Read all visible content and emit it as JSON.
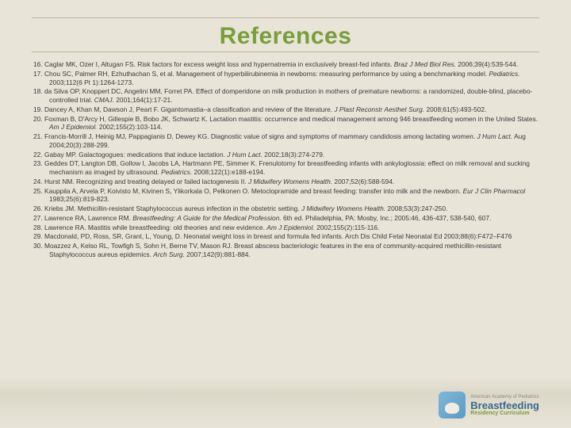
{
  "title": "References",
  "title_color": "#7a9e3a",
  "background_color": "#e8e4d8",
  "text_color": "#3a3a3a",
  "rule_color": "#b8b4a0",
  "ref_fontsize": 8.4,
  "references": [
    {
      "n": "16",
      "pre": "Caglar MK, Ozer I, Altugan FS. Risk factors for excess weight loss and hypernatremia in exclusively breast-fed infants. ",
      "ital": "Braz J Med Biol Res.",
      "post": " 2006;39(4):539-544."
    },
    {
      "n": "17",
      "pre": "Chou SC, Palmer RH, Ezhuthachan S, et al. Management of hyperbilirubinemia in newborns: measuring performance by using a benchmarking model. ",
      "ital": "Pediatrics.",
      "post": " 2003;112(6 Pt 1):1264-1273."
    },
    {
      "n": "18",
      "pre": "da Silva OP, Knoppert DC, Angelini MM, Forret PA. Effect of domperidone on milk production in mothers of premature newborns: a randomized, double-blind, placebo-controlled trial. ",
      "ital": "CMAJ.",
      "post": " 2001;164(1):17-21."
    },
    {
      "n": "19",
      "pre": "Dancey A, Khan M, Dawson J, Peart F. Gigantomastia–a classification and review of the literature. ",
      "ital": "J Plast Reconstr Aesthet Surg.",
      "post": " 2008;61(5):493-502."
    },
    {
      "n": "20",
      "pre": "Foxman B, D'Arcy H, Gillespie B, Bobo JK, Schwartz K. Lactation mastitis: occurrence and medical management among 946 breastfeeding women in the United States. ",
      "ital": "Am J Epidemiol.",
      "post": " 2002;155(2):103-114."
    },
    {
      "n": "21",
      "pre": "Francis-Morrill J, Heinig MJ, Pappagianis D, Dewey KG. Diagnostic value of signs and symptoms of mammary candidosis among lactating women. ",
      "ital": "J Hum Lact.",
      "post": " Aug 2004;20(3):288-299."
    },
    {
      "n": "22",
      "pre": "Gabay MP. Galactogogues: medications that induce lactation. ",
      "ital": "J Hum Lact.",
      "post": " 2002;18(3):274-279."
    },
    {
      "n": "23",
      "pre": "Geddes DT, Langton DB, Gollow I, Jacobs LA, Hartmann PE, Simmer K. Frenulotomy for breastfeeding infants with ankyloglossia: effect on milk removal and sucking mechanism as imaged by ultrasound. ",
      "ital": "Pediatrics.",
      "post": " 2008;122(1):e188-e194."
    },
    {
      "n": "24",
      "pre": "Hurst NM. Recognizing and treating delayed or failed lactogenesis II. ",
      "ital": "J Midwifery Womens Health.",
      "post": " 2007;52(6):588-594."
    },
    {
      "n": "25",
      "pre": "Kauppila A, Arvela P, Koivisto M, Kivinen S, Ylikorkala O, Pelkonen O. Metoclopramide and breast feeding: transfer into milk and the newborn. ",
      "ital": "Eur J Clin Pharmacol",
      "post": " 1983;25(6):819-823."
    },
    {
      "n": "26",
      "pre": "Kriebs JM. Methicillin-resistant Staphylococcus aureus infection in the obstetric setting. ",
      "ital": "J Midwifery Womens Health.",
      "post": " 2008;53(3):247-250."
    },
    {
      "n": "27",
      "pre": "Lawrence RA, Lawrence RM. ",
      "ital": "Breastfeeding: A Guide for the Medical Profession.",
      "post": " 6th ed. Philadelphia, PA: Mosby, Inc.; 2005:46, 436-437, 538-540, 607."
    },
    {
      "n": "28",
      "pre": "Lawrence RA. Mastitis while breastfeeding: old theories and new evidence. ",
      "ital": "Am J Epidemiol.",
      "post": " 2002;155(2):115-116."
    },
    {
      "n": "29",
      "pre": "Macdonald, PD, Ross, SR, Grant, L, Young, D. Neonatal weight loss in breast and formula fed infants. Arch Dis Child Fetal Neonatal Ed 2003;88(6):F472–F476",
      "ital": "",
      "post": ""
    },
    {
      "n": "30",
      "pre": "Moazzez A, Kelso RL, Towfigh S, Sohn H, Berne TV, Mason RJ. Breast abscess bacteriologic features in the era of community-acquired methicillin-resistant Staphylococcus aureus epidemics. ",
      "ital": "Arch Surg.",
      "post": " 2007;142(9):881-884."
    }
  ],
  "logo": {
    "top": "American Academy of Pediatrics",
    "main": "Breastfeeding",
    "sub": "Residency Curriculum",
    "badge_color": "#5a9bc4",
    "main_color": "#3a6a8a",
    "sub_color": "#7a9e3a"
  }
}
